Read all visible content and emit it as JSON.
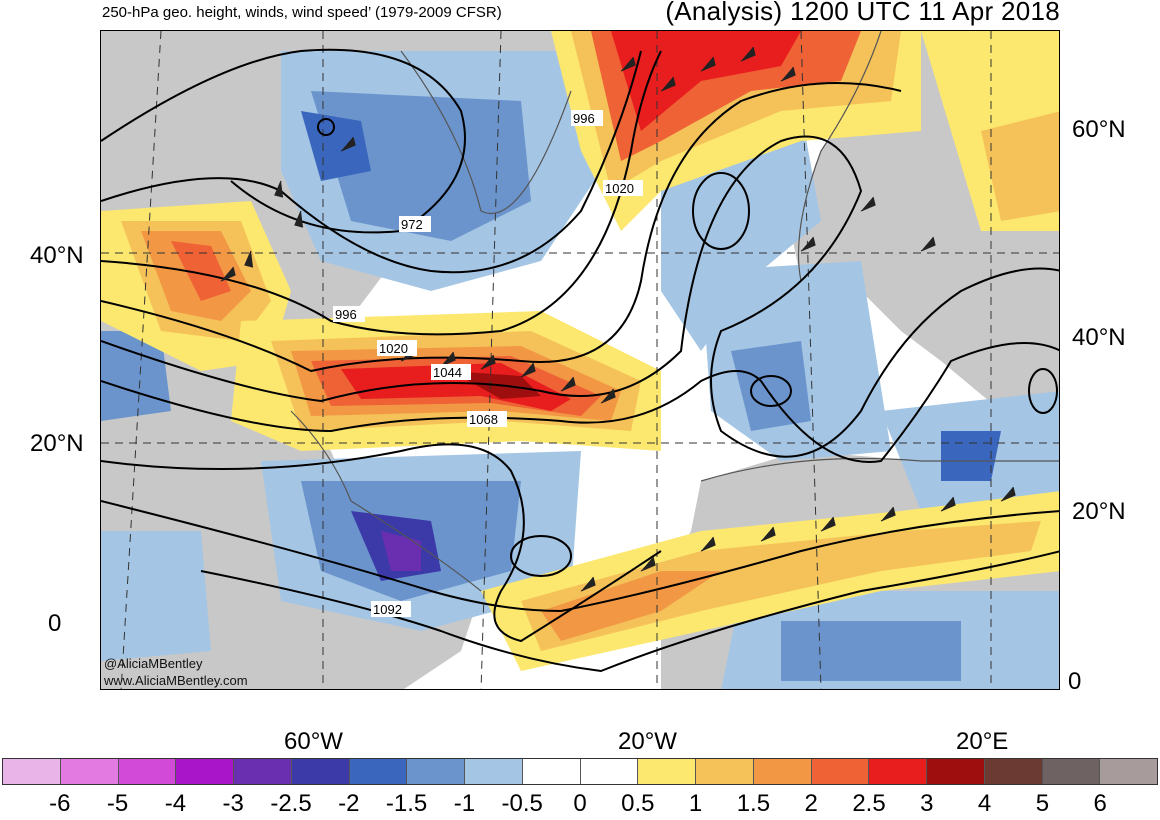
{
  "header": {
    "left_title": "250-hPa geo. height, winds, wind speed’ (1979-2009 CFSR)",
    "right_title": "(Analysis) 1200 UTC 11 Apr 2018"
  },
  "map": {
    "lat_labels_left": [
      "40°N",
      "20°N",
      "0"
    ],
    "lat_labels_right": [
      "60°N",
      "40°N",
      "20°N",
      "0"
    ],
    "lon_labels": [
      "60°W",
      "20°W",
      "20°E"
    ],
    "contour_labels": [
      "996",
      "1020",
      "972",
      "996",
      "1020",
      "1044",
      "1068",
      "1092"
    ],
    "credits": [
      "@AliciaMBentley",
      "www.AliciaMBentley.com"
    ],
    "colors": {
      "land": "#c8c8c8",
      "coast": "#555555",
      "contour": "#000000",
      "graticule": "#333333"
    }
  },
  "colorbar": {
    "ticks": [
      "-6",
      "-5",
      "-4",
      "-3",
      "-2.5",
      "-2",
      "-1.5",
      "-1",
      "-0.5",
      "0",
      "0.5",
      "1",
      "1.5",
      "2",
      "2.5",
      "3",
      "4",
      "5",
      "6"
    ],
    "colors": [
      "#e9b5e9",
      "#e27ae2",
      "#d24bd8",
      "#a915c8",
      "#6a2fb0",
      "#3b3aa8",
      "#3a67bd",
      "#6b94cd",
      "#a4c6e4",
      "#ffffff",
      "#ffffff",
      "#fce86f",
      "#f5c25a",
      "#f29844",
      "#ee6236",
      "#e81d1d",
      "#9e0e0e",
      "#6b3a33",
      "#6e6262",
      "#a89b9b"
    ]
  }
}
